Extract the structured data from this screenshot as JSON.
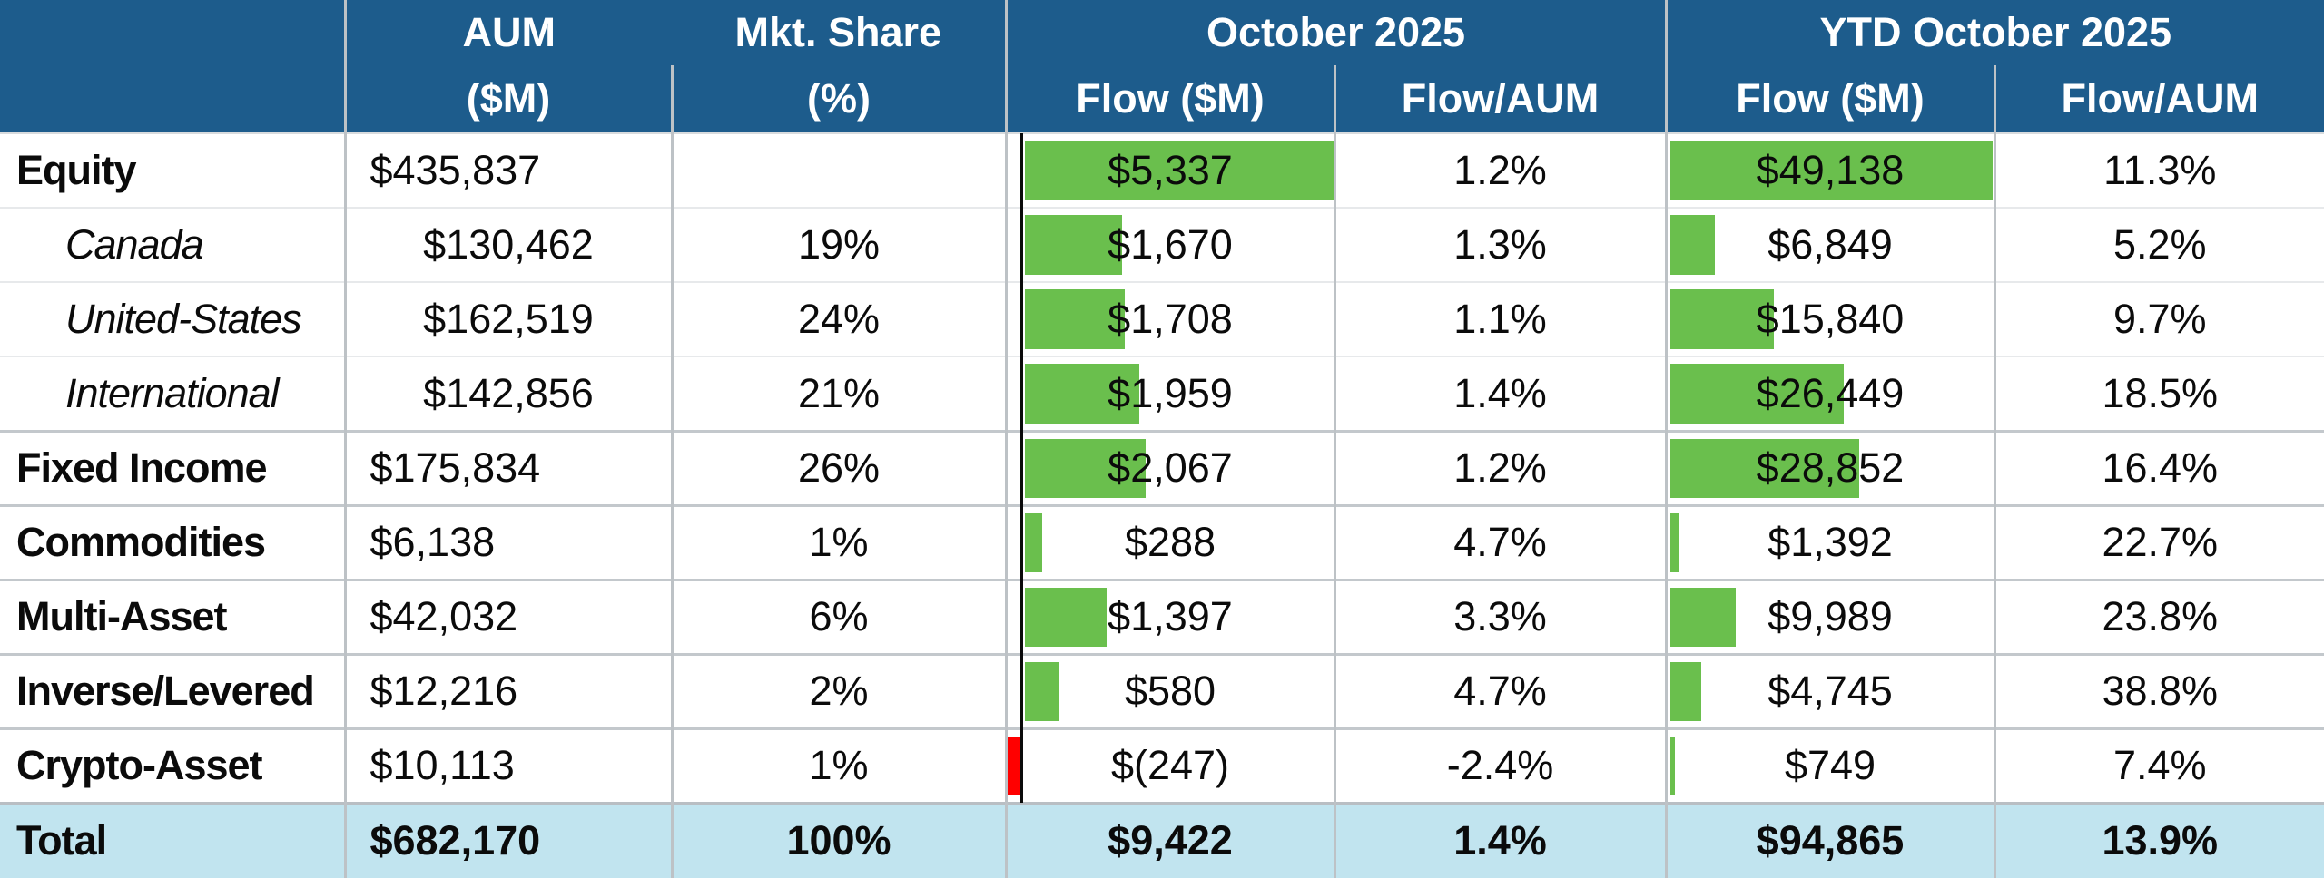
{
  "header": {
    "aum_top": "AUM",
    "aum_bottom": "($M)",
    "mkt_top": "Mkt. Share",
    "mkt_bottom": "(%)",
    "oct_group": "October 2025",
    "ytd_group": "YTD October 2025",
    "flow_label": "Flow ($M)",
    "flow_aum_label": "Flow/AUM"
  },
  "colors": {
    "header-bg": "#1D5C8C",
    "positive-bar": "#6ABF4D",
    "negative-bar": "#FF0000",
    "total-bg": "#C1E4EF",
    "grid-v": "#BDC2C6",
    "grid-light": "#E7E9EB",
    "grid-section": "#C3C8CC"
  },
  "chart_data": {
    "type": "table",
    "title": "ETF AUM and Flows by Asset Class — October 2025 and YTD October 2025",
    "bar_columns": [
      "October 2025 Flow ($M)",
      "YTD October 2025 Flow ($M)"
    ],
    "bar_colors": {
      "positive": "#6ABF4D",
      "negative": "#FF0000"
    },
    "columns": [
      "",
      "AUM ($M)",
      "Mkt. Share (%)",
      "October 2025 Flow ($M)",
      "October 2025 Flow/AUM",
      "YTD October 2025 Flow ($M)",
      "YTD October 2025 Flow/AUM"
    ],
    "rows": [
      {
        "label": "Equity",
        "kind": "category",
        "aum": "$435,837",
        "aum_value": 435837,
        "mkt_share": "",
        "oct_flow": "$5,337",
        "oct_flow_value": 5337,
        "oct_flow_aum": "1.2%",
        "ytd_flow": "$49,138",
        "ytd_flow_value": 49138,
        "ytd_flow_aum": "11.3%"
      },
      {
        "label": "Canada",
        "kind": "sub",
        "aum": "$130,462",
        "aum_value": 130462,
        "mkt_share": "19%",
        "oct_flow": "$1,670",
        "oct_flow_value": 1670,
        "oct_flow_aum": "1.3%",
        "ytd_flow": "$6,849",
        "ytd_flow_value": 6849,
        "ytd_flow_aum": "5.2%"
      },
      {
        "label": "United-States",
        "kind": "sub",
        "aum": "$162,519",
        "aum_value": 162519,
        "mkt_share": "24%",
        "oct_flow": "$1,708",
        "oct_flow_value": 1708,
        "oct_flow_aum": "1.1%",
        "ytd_flow": "$15,840",
        "ytd_flow_value": 15840,
        "ytd_flow_aum": "9.7%"
      },
      {
        "label": "International",
        "kind": "sub",
        "aum": "$142,856",
        "aum_value": 142856,
        "mkt_share": "21%",
        "oct_flow": "$1,959",
        "oct_flow_value": 1959,
        "oct_flow_aum": "1.4%",
        "ytd_flow": "$26,449",
        "ytd_flow_value": 26449,
        "ytd_flow_aum": "18.5%"
      },
      {
        "label": "Fixed Income",
        "kind": "category",
        "aum": "$175,834",
        "aum_value": 175834,
        "mkt_share": "26%",
        "oct_flow": "$2,067",
        "oct_flow_value": 2067,
        "oct_flow_aum": "1.2%",
        "ytd_flow": "$28,852",
        "ytd_flow_value": 28852,
        "ytd_flow_aum": "16.4%"
      },
      {
        "label": "Commodities",
        "kind": "category",
        "aum": "$6,138",
        "aum_value": 6138,
        "mkt_share": "1%",
        "oct_flow": "$288",
        "oct_flow_value": 288,
        "oct_flow_aum": "4.7%",
        "ytd_flow": "$1,392",
        "ytd_flow_value": 1392,
        "ytd_flow_aum": "22.7%"
      },
      {
        "label": "Multi-Asset",
        "kind": "category",
        "aum": "$42,032",
        "aum_value": 42032,
        "mkt_share": "6%",
        "oct_flow": "$1,397",
        "oct_flow_value": 1397,
        "oct_flow_aum": "3.3%",
        "ytd_flow": "$9,989",
        "ytd_flow_value": 9989,
        "ytd_flow_aum": "23.8%"
      },
      {
        "label": "Inverse/Levered",
        "kind": "category",
        "aum": "$12,216",
        "aum_value": 12216,
        "mkt_share": "2%",
        "oct_flow": "$580",
        "oct_flow_value": 580,
        "oct_flow_aum": "4.7%",
        "ytd_flow": "$4,745",
        "ytd_flow_value": 4745,
        "ytd_flow_aum": "38.8%"
      },
      {
        "label": "Crypto-Asset",
        "kind": "category",
        "aum": "$10,113",
        "aum_value": 10113,
        "mkt_share": "1%",
        "oct_flow": "$(247)",
        "oct_flow_value": -247,
        "oct_flow_aum": "-2.4%",
        "ytd_flow": "$749",
        "ytd_flow_value": 749,
        "ytd_flow_aum": "7.4%"
      },
      {
        "label": "Total",
        "kind": "total",
        "aum": "$682,170",
        "aum_value": 682170,
        "mkt_share": "100%",
        "oct_flow": "$9,422",
        "oct_flow_value": 9422,
        "oct_flow_aum": "1.4%",
        "ytd_flow": "$94,865",
        "ytd_flow_value": 94865,
        "ytd_flow_aum": "13.9%"
      }
    ]
  }
}
